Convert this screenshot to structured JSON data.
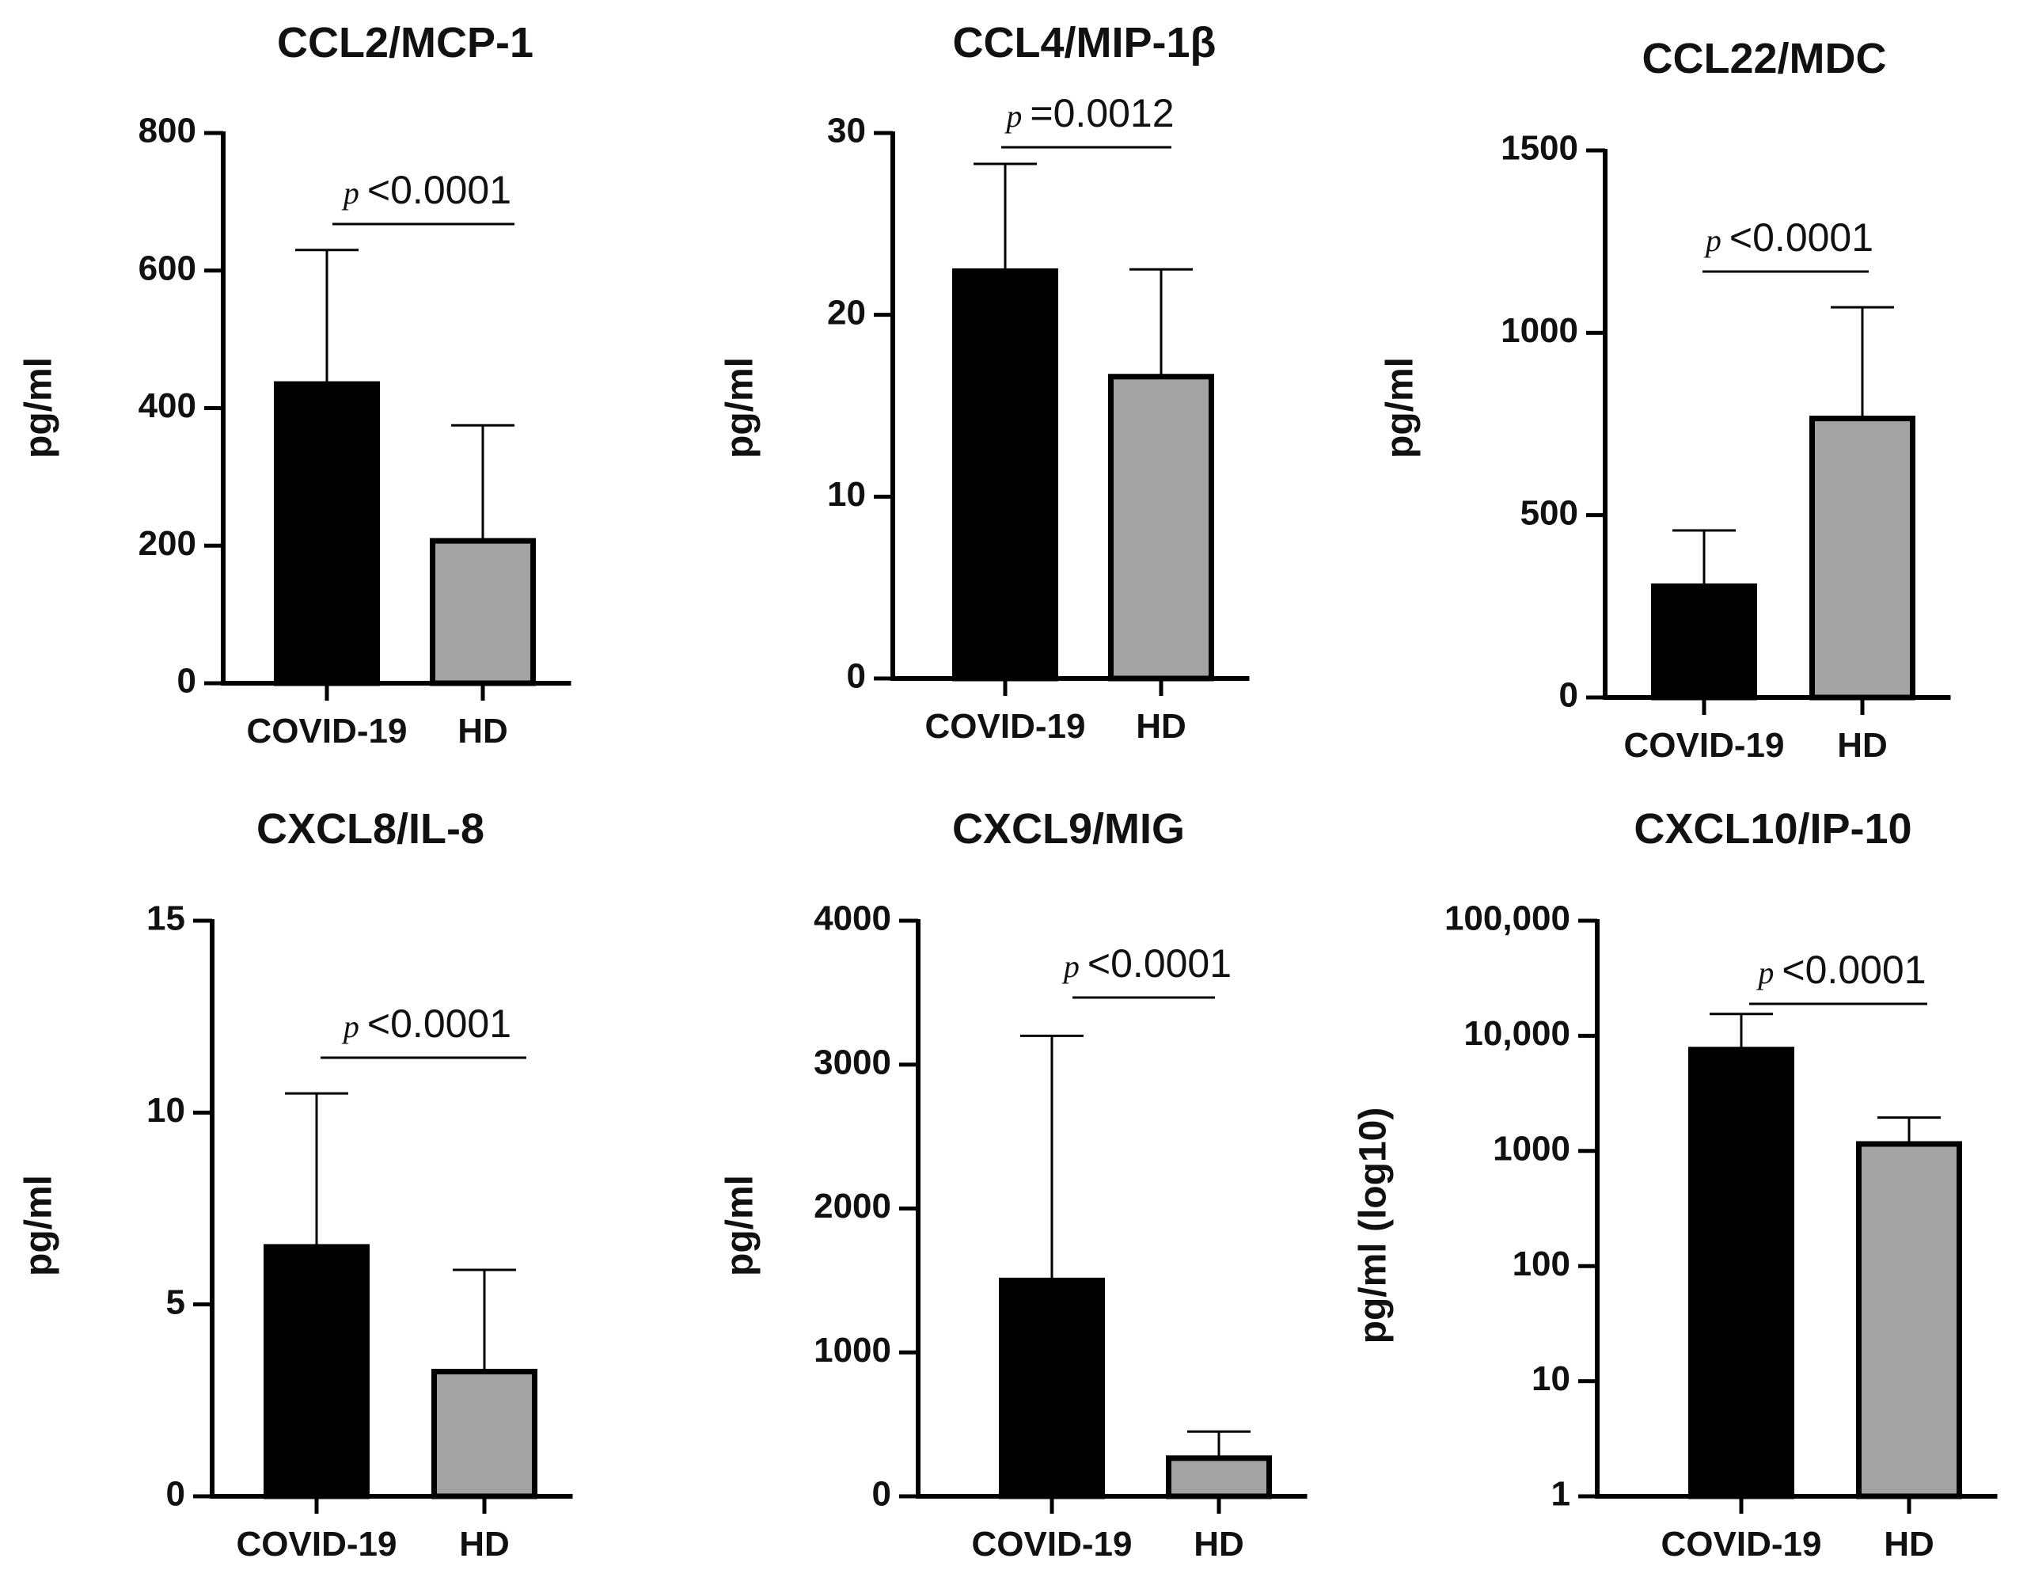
{
  "chart_data": [
    {
      "type": "bar",
      "title": "CCL2/MCP-1",
      "ylabel": "pg/ml",
      "scale": "linear",
      "ylim": [
        0,
        800
      ],
      "ticks": [
        0,
        200,
        400,
        600,
        800
      ],
      "tick_labels": [
        "0",
        "200",
        "400",
        "600",
        "800"
      ],
      "categories": [
        "COVID-19",
        "HD"
      ],
      "values": [
        435,
        207
      ],
      "error_upper": [
        630,
        375
      ],
      "colors": [
        "#000000",
        "#a3a3a3"
      ],
      "annotation": {
        "prefix": "p",
        "text": "<0.0001"
      }
    },
    {
      "type": "bar",
      "title": "CCL4/MIP-1β",
      "ylabel": "pg/ml",
      "scale": "linear",
      "ylim": [
        0,
        30
      ],
      "ticks": [
        0,
        10,
        20,
        30
      ],
      "tick_labels": [
        "0",
        "10",
        "20",
        "30"
      ],
      "categories": [
        "COVID-19",
        "HD"
      ],
      "values": [
        22.4,
        16.6
      ],
      "error_upper": [
        28.3,
        22.5
      ],
      "colors": [
        "#000000",
        "#a3a3a3"
      ],
      "annotation": {
        "prefix": "p",
        "text": "=0.0012"
      }
    },
    {
      "type": "bar",
      "title": "CCL22/MDC",
      "ylabel": "pg/ml",
      "scale": "linear",
      "ylim": [
        0,
        1500
      ],
      "ticks": [
        0,
        500,
        1000,
        1500
      ],
      "tick_labels": [
        "0",
        "500",
        "1000",
        "1500"
      ],
      "categories": [
        "COVID-19",
        "HD"
      ],
      "values": [
        305,
        765
      ],
      "error_upper": [
        458,
        1070
      ],
      "colors": [
        "#000000",
        "#a3a3a3"
      ],
      "annotation": {
        "prefix": "p",
        "text": "<0.0001"
      }
    },
    {
      "type": "bar",
      "title": "CXCL8/IL-8",
      "ylabel": "pg/ml",
      "scale": "linear",
      "ylim": [
        0,
        15
      ],
      "ticks": [
        0,
        5,
        10,
        15
      ],
      "tick_labels": [
        "0",
        "5",
        "10",
        "15"
      ],
      "categories": [
        "COVID-19",
        "HD"
      ],
      "values": [
        6.5,
        3.25
      ],
      "error_upper": [
        10.5,
        5.9
      ],
      "colors": [
        "#000000",
        "#a3a3a3"
      ],
      "annotation": {
        "prefix": "p",
        "text": "<0.0001"
      }
    },
    {
      "type": "bar",
      "title": "CXCL9/MIG",
      "ylabel": "pg/ml",
      "scale": "linear",
      "ylim": [
        0,
        4000
      ],
      "ticks": [
        0,
        1000,
        2000,
        3000,
        4000
      ],
      "tick_labels": [
        "0",
        "1000",
        "2000",
        "3000",
        "4000"
      ],
      "categories": [
        "COVID-19",
        "HD"
      ],
      "values": [
        1500,
        265
      ],
      "error_upper": [
        3200,
        450
      ],
      "colors": [
        "#000000",
        "#a3a3a3"
      ],
      "annotation": {
        "prefix": "p",
        "text": "<0.0001"
      }
    },
    {
      "type": "bar",
      "title": "CXCL10/IP-10",
      "ylabel": "pg/ml (log10)",
      "scale": "log",
      "ylim": [
        1,
        100000
      ],
      "ticks": [
        1,
        10,
        100,
        1000,
        10000,
        100000
      ],
      "tick_labels": [
        "1",
        "10",
        "100",
        "1000",
        "10,000",
        "100,000"
      ],
      "categories": [
        "COVID-19",
        "HD"
      ],
      "values": [
        7600,
        1150
      ],
      "error_upper": [
        15500,
        1950
      ],
      "colors": [
        "#000000",
        "#a3a3a3"
      ],
      "annotation": {
        "prefix": "p",
        "text": "<0.0001"
      }
    }
  ]
}
